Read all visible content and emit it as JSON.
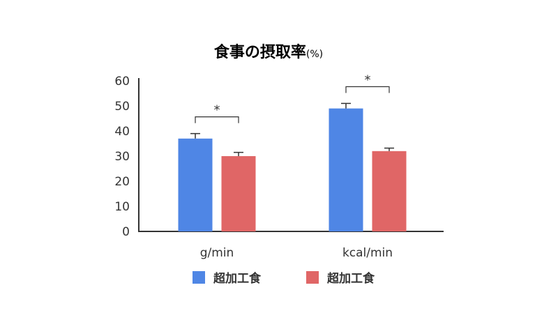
{
  "chart_data": {
    "type": "bar",
    "title": "食事の摂取率",
    "title_unit": "(%)",
    "categories": [
      "g/min",
      "kcal/min"
    ],
    "ylim": [
      0,
      60
    ],
    "yticks": [
      0,
      10,
      20,
      30,
      40,
      50,
      60
    ],
    "grid": false,
    "legend_position": "bottom",
    "series": [
      {
        "name": "超加工食",
        "color": "#4f86e5",
        "values": [
          37,
          49
        ],
        "errors": [
          2,
          2
        ]
      },
      {
        "name": "超加工食",
        "color": "#e06666",
        "values": [
          30,
          32
        ],
        "errors": [
          1.5,
          1.2
        ]
      }
    ],
    "annotations": [
      {
        "category": "g/min",
        "text": "*"
      },
      {
        "category": "kcal/min",
        "text": "*"
      }
    ]
  }
}
